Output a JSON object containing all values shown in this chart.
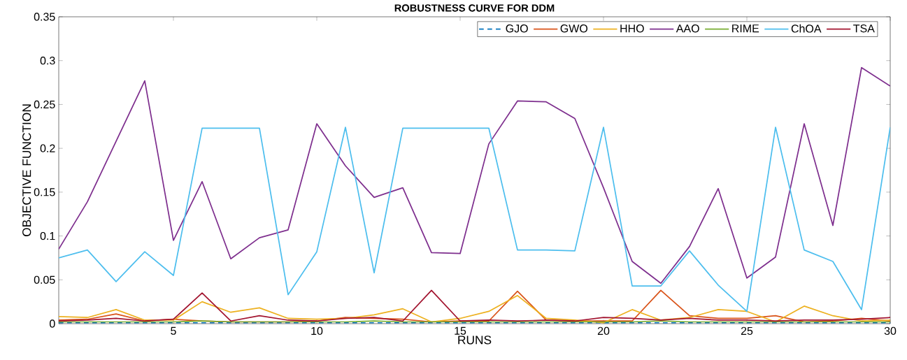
{
  "chart_data": {
    "type": "line",
    "title": "ROBUSTNESS CURVE FOR DDM",
    "xlabel": "RUNS",
    "ylabel": "OBJECTIVE FUNCTION",
    "x": [
      1,
      2,
      3,
      4,
      5,
      6,
      7,
      8,
      9,
      10,
      11,
      12,
      13,
      14,
      15,
      16,
      17,
      18,
      19,
      20,
      21,
      22,
      23,
      24,
      25,
      26,
      27,
      28,
      29,
      30
    ],
    "xlim": [
      1,
      30
    ],
    "ylim": [
      0,
      0.35
    ],
    "xticks": [
      5,
      10,
      15,
      20,
      25,
      30
    ],
    "yticks": [
      0,
      0.05,
      0.1,
      0.15,
      0.2,
      0.25,
      0.3,
      0.35
    ],
    "legend": "top right",
    "grid": false,
    "series": [
      {
        "name": "GJO",
        "color": "#0072bd",
        "line_style": "dashed",
        "values": [
          0.001,
          0.001,
          0.001,
          0.001,
          0.001,
          0.001,
          0.001,
          0.001,
          0.001,
          0.001,
          0.001,
          0.001,
          0.001,
          0.001,
          0.001,
          0.001,
          0.001,
          0.001,
          0.001,
          0.001,
          0.001,
          0.001,
          0.001,
          0.001,
          0.001,
          0.001,
          0.001,
          0.001,
          0.001,
          0.001
        ]
      },
      {
        "name": "GWO",
        "color": "#d95319",
        "values": [
          0.004,
          0.005,
          0.011,
          0.003,
          0.005,
          0.003,
          0.002,
          0.002,
          0.002,
          0.003,
          0.007,
          0.006,
          0.005,
          0.002,
          0.003,
          0.003,
          0.037,
          0.004,
          0.003,
          0.003,
          0.003,
          0.038,
          0.009,
          0.006,
          0.006,
          0.009,
          0.002,
          0.003,
          0.006,
          0.003
        ]
      },
      {
        "name": "HHO",
        "color": "#edb120",
        "values": [
          0.008,
          0.007,
          0.016,
          0.004,
          0.004,
          0.025,
          0.013,
          0.018,
          0.006,
          0.005,
          0.006,
          0.01,
          0.017,
          0.002,
          0.006,
          0.014,
          0.032,
          0.006,
          0.004,
          0.001,
          0.016,
          0.004,
          0.007,
          0.016,
          0.014,
          0.002,
          0.02,
          0.009,
          0.003,
          0.004
        ]
      },
      {
        "name": "AAO",
        "color": "#7e2f8e",
        "values": [
          0.085,
          0.139,
          0.208,
          0.277,
          0.095,
          0.162,
          0.074,
          0.098,
          0.107,
          0.228,
          0.18,
          0.144,
          0.155,
          0.081,
          0.08,
          0.205,
          0.254,
          0.253,
          0.234,
          0.155,
          0.071,
          0.046,
          0.088,
          0.154,
          0.052,
          0.076,
          0.228,
          0.112,
          0.292,
          0.271
        ]
      },
      {
        "name": "RIME",
        "color": "#77ac30",
        "values": [
          0.002,
          0.002,
          0.002,
          0.002,
          0.002,
          0.003,
          0.002,
          0.002,
          0.002,
          0.002,
          0.002,
          0.003,
          0.002,
          0.002,
          0.002,
          0.002,
          0.002,
          0.002,
          0.002,
          0.002,
          0.002,
          0.003,
          0.002,
          0.002,
          0.002,
          0.002,
          0.002,
          0.002,
          0.002,
          0.002
        ]
      },
      {
        "name": "ChOA",
        "color": "#4dbeee",
        "values": [
          0.075,
          0.084,
          0.048,
          0.082,
          0.055,
          0.223,
          0.223,
          0.223,
          0.033,
          0.082,
          0.224,
          0.058,
          0.223,
          0.223,
          0.223,
          0.223,
          0.084,
          0.084,
          0.083,
          0.224,
          0.043,
          0.043,
          0.083,
          0.044,
          0.014,
          0.224,
          0.084,
          0.071,
          0.016,
          0.224
        ]
      },
      {
        "name": "TSA",
        "color": "#a2142f",
        "values": [
          0.003,
          0.004,
          0.006,
          0.003,
          0.005,
          0.035,
          0.003,
          0.009,
          0.004,
          0.003,
          0.006,
          0.007,
          0.003,
          0.038,
          0.003,
          0.004,
          0.003,
          0.004,
          0.003,
          0.007,
          0.006,
          0.004,
          0.006,
          0.004,
          0.004,
          0.003,
          0.004,
          0.004,
          0.005,
          0.007
        ]
      }
    ]
  }
}
